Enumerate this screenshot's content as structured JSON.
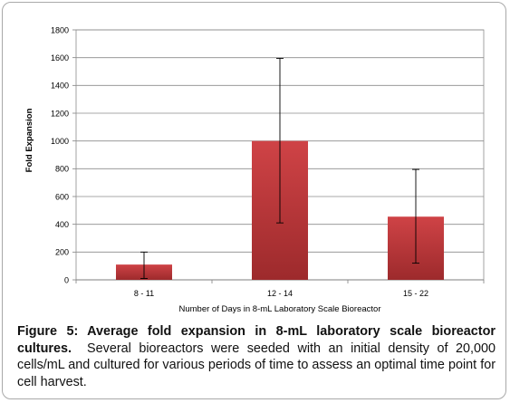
{
  "chart_data": {
    "type": "bar",
    "categories": [
      "8 - 11",
      "12 - 14",
      "15 - 22"
    ],
    "values": [
      110,
      1000,
      455
    ],
    "error_low": [
      10,
      410,
      120
    ],
    "error_high": [
      200,
      1595,
      795
    ],
    "xlabel": "Number of Days in 8-mL Laboratory Scale Bioreactor",
    "ylabel": "Fold Expansion",
    "ylim": [
      0,
      1800
    ],
    "yticks": [
      0,
      200,
      400,
      600,
      800,
      1000,
      1200,
      1400,
      1600,
      1800
    ],
    "grid": true,
    "legend": "none",
    "bar_color": "#c0383b"
  },
  "caption": {
    "label": "Figure 5: Average fold expansion in 8-mL laboratory scale bioreactor cultures.",
    "text": "Several bioreactors were seeded with an initial density of 20,000 cells/mL and cultured for various periods of time to assess an optimal time point for cell harvest."
  }
}
